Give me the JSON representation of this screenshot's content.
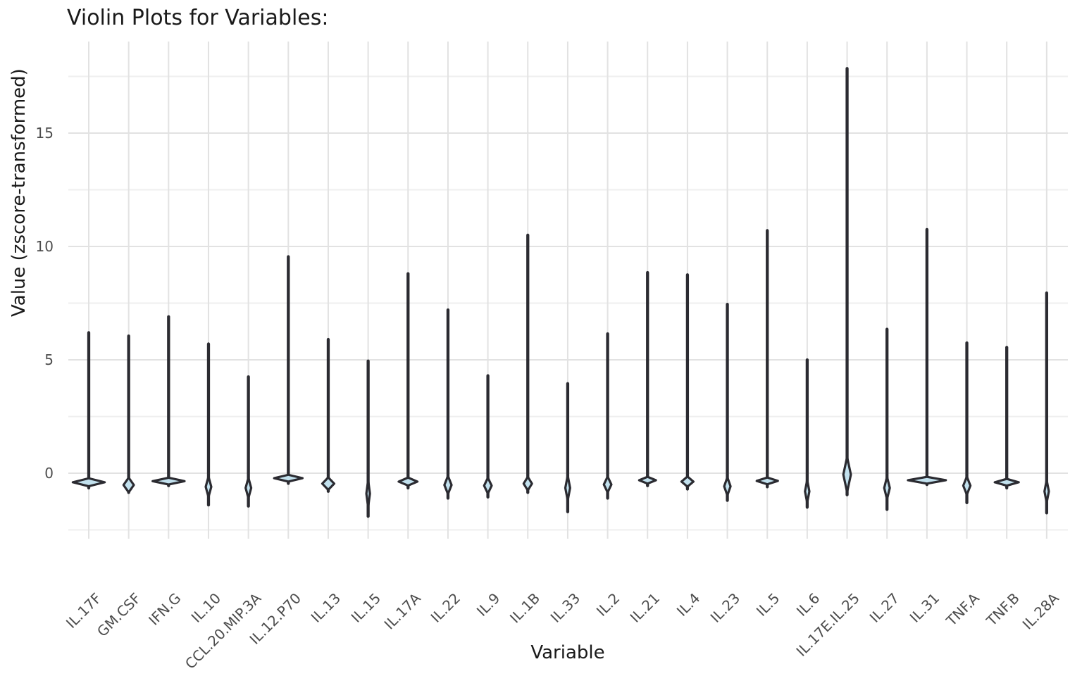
{
  "title": "Violin Plots for Variables:",
  "axes": {
    "x_title": "Variable",
    "y_title": "Value (zscore-transformed)",
    "y_ticks": [
      0,
      5,
      10,
      15
    ],
    "y_minor_ticks": [
      -2.5,
      2.5,
      7.5,
      12.5,
      17.5
    ],
    "y_range": [
      -2.9,
      19.0
    ]
  },
  "colors": {
    "background": "#ffffff",
    "grid_major": "#e2e2e2",
    "grid_minor": "#efefef",
    "violin_stroke": "#2b2b31",
    "violin_fill": "#c2e1ee",
    "axis_text": "#4d4d4d",
    "title_text": "#1a1a1a"
  },
  "chart_data": {
    "type": "violin",
    "title": "Violin Plots for Variables:",
    "xlabel": "Variable",
    "ylabel": "Value (zscore-transformed)",
    "ylim": [
      -2.9,
      19.0
    ],
    "grid": true,
    "legend": false,
    "categories": [
      "IL.17F",
      "GM.CSF",
      "IFN.G",
      "IL.10",
      "CCL.20.MIP.3A",
      "IL.12.P70",
      "IL.13",
      "IL.15",
      "IL.17A",
      "IL.22",
      "IL.9",
      "IL.1B",
      "IL.33",
      "IL.2",
      "IL.21",
      "IL.4",
      "IL.23",
      "IL.5",
      "IL.6",
      "IL.17E.IL.25",
      "IL.27",
      "IL.31",
      "TNF.A",
      "TNF.B",
      "IL.28A"
    ],
    "violins": [
      {
        "label": "IL.17F",
        "max": 6.2,
        "min": -0.65,
        "peak": -0.4,
        "peak_spread": 0.35,
        "peak_rel_width": 0.8
      },
      {
        "label": "GM.CSF",
        "max": 6.05,
        "min": -0.85,
        "peak": -0.52,
        "peak_spread": 0.65,
        "peak_rel_width": 0.26
      },
      {
        "label": "IFN.G",
        "max": 6.9,
        "min": -0.55,
        "peak": -0.35,
        "peak_spread": 0.3,
        "peak_rel_width": 0.8
      },
      {
        "label": "IL.10",
        "max": 5.7,
        "min": -1.4,
        "peak": -0.6,
        "peak_spread": 0.9,
        "peak_rel_width": 0.14
      },
      {
        "label": "CCL.20.MIP.3A",
        "max": 4.25,
        "min": -1.45,
        "peak": -0.65,
        "peak_spread": 0.9,
        "peak_rel_width": 0.14
      },
      {
        "label": "IL.12.P70",
        "max": 9.55,
        "min": -0.45,
        "peak": -0.22,
        "peak_spread": 0.3,
        "peak_rel_width": 0.71
      },
      {
        "label": "IL.13",
        "max": 5.9,
        "min": -0.8,
        "peak": -0.46,
        "peak_spread": 0.55,
        "peak_rel_width": 0.3
      },
      {
        "label": "IL.15",
        "max": 4.95,
        "min": -1.9,
        "peak": -0.9,
        "peak_spread": 1.2,
        "peak_rel_width": 0.09
      },
      {
        "label": "IL.17A",
        "max": 8.8,
        "min": -0.65,
        "peak": -0.37,
        "peak_spread": 0.35,
        "peak_rel_width": 0.47
      },
      {
        "label": "IL.22",
        "max": 7.2,
        "min": -1.1,
        "peak": -0.52,
        "peak_spread": 0.8,
        "peak_rel_width": 0.18
      },
      {
        "label": "IL.9",
        "max": 4.3,
        "min": -1.05,
        "peak": -0.55,
        "peak_spread": 0.7,
        "peak_rel_width": 0.19
      },
      {
        "label": "IL.1B",
        "max": 10.5,
        "min": -0.85,
        "peak": -0.46,
        "peak_spread": 0.6,
        "peak_rel_width": 0.21
      },
      {
        "label": "IL.33",
        "max": 3.95,
        "min": -1.7,
        "peak": -0.65,
        "peak_spread": 1.1,
        "peak_rel_width": 0.12
      },
      {
        "label": "IL.2",
        "max": 6.15,
        "min": -1.1,
        "peak": -0.5,
        "peak_spread": 0.7,
        "peak_rel_width": 0.19
      },
      {
        "label": "IL.21",
        "max": 8.85,
        "min": -0.55,
        "peak": -0.31,
        "peak_spread": 0.3,
        "peak_rel_width": 0.42
      },
      {
        "label": "IL.4",
        "max": 8.75,
        "min": -0.7,
        "peak": -0.37,
        "peak_spread": 0.45,
        "peak_rel_width": 0.3
      },
      {
        "label": "IL.23",
        "max": 7.45,
        "min": -1.2,
        "peak": -0.58,
        "peak_spread": 0.8,
        "peak_rel_width": 0.16
      },
      {
        "label": "IL.5",
        "max": 10.7,
        "min": -0.6,
        "peak": -0.34,
        "peak_spread": 0.3,
        "peak_rel_width": 0.53
      },
      {
        "label": "IL.6",
        "max": 5.0,
        "min": -1.5,
        "peak": -0.8,
        "peak_spread": 1.0,
        "peak_rel_width": 0.11
      },
      {
        "label": "IL.17E.IL.25",
        "max": 17.85,
        "min": -0.95,
        "peak": -0.06,
        "peak_spread": 1.55,
        "peak_rel_width": 0.19
      },
      {
        "label": "IL.27",
        "max": 6.35,
        "min": -1.6,
        "peak": -0.65,
        "peak_spread": 1.0,
        "peak_rel_width": 0.14
      },
      {
        "label": "IL.31",
        "max": 10.75,
        "min": -0.5,
        "peak": -0.31,
        "peak_spread": 0.3,
        "peak_rel_width": 0.95
      },
      {
        "label": "TNF.A",
        "max": 5.75,
        "min": -1.3,
        "peak": -0.55,
        "peak_spread": 0.8,
        "peak_rel_width": 0.18
      },
      {
        "label": "TNF.B",
        "max": 5.55,
        "min": -0.65,
        "peak": -0.4,
        "peak_spread": 0.3,
        "peak_rel_width": 0.6
      },
      {
        "label": "IL.28A",
        "max": 7.95,
        "min": -1.75,
        "peak": -0.8,
        "peak_spread": 1.0,
        "peak_rel_width": 0.11
      }
    ]
  }
}
